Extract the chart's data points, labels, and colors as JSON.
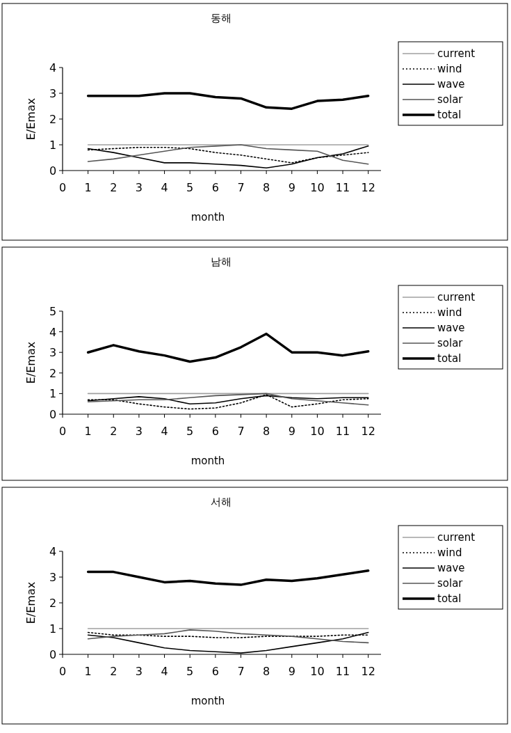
{
  "chart_data": [
    {
      "type": "line",
      "title": "동해",
      "xlabel": "month",
      "ylabel": "E/Emax",
      "x": [
        1,
        2,
        3,
        4,
        5,
        6,
        7,
        8,
        9,
        10,
        11,
        12
      ],
      "xlim": [
        0,
        12.5
      ],
      "xticks": [
        0,
        1,
        2,
        3,
        4,
        5,
        6,
        7,
        8,
        9,
        10,
        11,
        12
      ],
      "ylim": [
        0,
        4
      ],
      "yticks": [
        0,
        1,
        2,
        3,
        4
      ],
      "legend": "right",
      "series": [
        {
          "name": "current",
          "color": "#a0a0a0",
          "line_style": "solid",
          "values": [
            1,
            1,
            1,
            1,
            1,
            1,
            1,
            1,
            1,
            1,
            1,
            1
          ]
        },
        {
          "name": "wind",
          "color": "#000000",
          "line_style": "dotted",
          "values": [
            0.8,
            0.85,
            0.9,
            0.9,
            0.85,
            0.7,
            0.6,
            0.45,
            0.3,
            0.5,
            0.6,
            0.7
          ]
        },
        {
          "name": "wave",
          "color": "#000000",
          "line_style": "solid",
          "values": [
            0.85,
            0.7,
            0.5,
            0.3,
            0.3,
            0.25,
            0.2,
            0.1,
            0.25,
            0.5,
            0.65,
            0.95
          ]
        },
        {
          "name": "solar",
          "color": "#555555",
          "line_style": "solid",
          "values": [
            0.35,
            0.45,
            0.6,
            0.75,
            0.9,
            0.95,
            1,
            0.85,
            0.8,
            0.75,
            0.4,
            0.25
          ]
        },
        {
          "name": "total",
          "color": "#000000",
          "line_style": "solid",
          "values": [
            2.9,
            2.9,
            2.9,
            3,
            3,
            2.85,
            2.8,
            2.45,
            2.4,
            2.7,
            2.75,
            2.9
          ]
        }
      ]
    },
    {
      "type": "line",
      "title": "남해",
      "xlabel": "month",
      "ylabel": "E/Emax",
      "x": [
        1,
        2,
        3,
        4,
        5,
        6,
        7,
        8,
        9,
        10,
        11,
        12
      ],
      "xlim": [
        0,
        12.5
      ],
      "xticks": [
        0,
        1,
        2,
        3,
        4,
        5,
        6,
        7,
        8,
        9,
        10,
        11,
        12
      ],
      "ylim": [
        0,
        5
      ],
      "yticks": [
        0,
        1,
        2,
        3,
        4,
        5
      ],
      "legend": "right",
      "series": [
        {
          "name": "current",
          "color": "#a0a0a0",
          "line_style": "solid",
          "values": [
            1,
            1,
            1,
            1,
            1,
            1,
            1,
            1,
            1,
            1,
            1,
            1
          ]
        },
        {
          "name": "wind",
          "color": "#000000",
          "line_style": "dotted",
          "values": [
            0.7,
            0.7,
            0.5,
            0.35,
            0.25,
            0.3,
            0.55,
            0.95,
            0.35,
            0.5,
            0.7,
            0.75
          ]
        },
        {
          "name": "wave",
          "color": "#000000",
          "line_style": "solid",
          "values": [
            0.65,
            0.75,
            0.85,
            0.75,
            0.5,
            0.55,
            0.75,
            0.9,
            0.8,
            0.75,
            0.8,
            0.8
          ]
        },
        {
          "name": "solar",
          "color": "#555555",
          "line_style": "solid",
          "values": [
            0.6,
            0.65,
            0.7,
            0.7,
            0.8,
            0.9,
            0.95,
            1,
            0.75,
            0.65,
            0.55,
            0.45
          ]
        },
        {
          "name": "total",
          "color": "#000000",
          "line_style": "solid",
          "values": [
            3,
            3.35,
            3.05,
            2.85,
            2.55,
            2.75,
            3.25,
            3.9,
            3,
            3,
            2.85,
            3.05
          ]
        }
      ]
    },
    {
      "type": "line",
      "title": "서해",
      "xlabel": "month",
      "ylabel": "E/Emax",
      "x": [
        1,
        2,
        3,
        4,
        5,
        6,
        7,
        8,
        9,
        10,
        11,
        12
      ],
      "xlim": [
        0,
        12.5
      ],
      "xticks": [
        0,
        1,
        2,
        3,
        4,
        5,
        6,
        7,
        8,
        9,
        10,
        11,
        12
      ],
      "ylim": [
        0,
        4
      ],
      "yticks": [
        0,
        1,
        2,
        3,
        4
      ],
      "legend": "right",
      "series": [
        {
          "name": "current",
          "color": "#a0a0a0",
          "line_style": "solid",
          "values": [
            1,
            1,
            1,
            1,
            1,
            1,
            1,
            1,
            1,
            1,
            1,
            1
          ]
        },
        {
          "name": "wind",
          "color": "#000000",
          "line_style": "dotted",
          "values": [
            0.85,
            0.75,
            0.75,
            0.7,
            0.7,
            0.65,
            0.65,
            0.7,
            0.7,
            0.7,
            0.75,
            0.75
          ]
        },
        {
          "name": "wave",
          "color": "#000000",
          "line_style": "solid",
          "values": [
            0.75,
            0.65,
            0.45,
            0.25,
            0.15,
            0.1,
            0.05,
            0.15,
            0.3,
            0.45,
            0.6,
            0.85
          ]
        },
        {
          "name": "solar",
          "color": "#555555",
          "line_style": "solid",
          "values": [
            0.6,
            0.7,
            0.75,
            0.8,
            0.95,
            0.9,
            0.8,
            0.75,
            0.7,
            0.6,
            0.5,
            0.45
          ]
        },
        {
          "name": "total",
          "color": "#000000",
          "line_style": "solid",
          "values": [
            3.2,
            3.2,
            3,
            2.8,
            2.85,
            2.75,
            2.7,
            2.9,
            2.85,
            2.95,
            3.1,
            3.25
          ]
        }
      ]
    }
  ]
}
